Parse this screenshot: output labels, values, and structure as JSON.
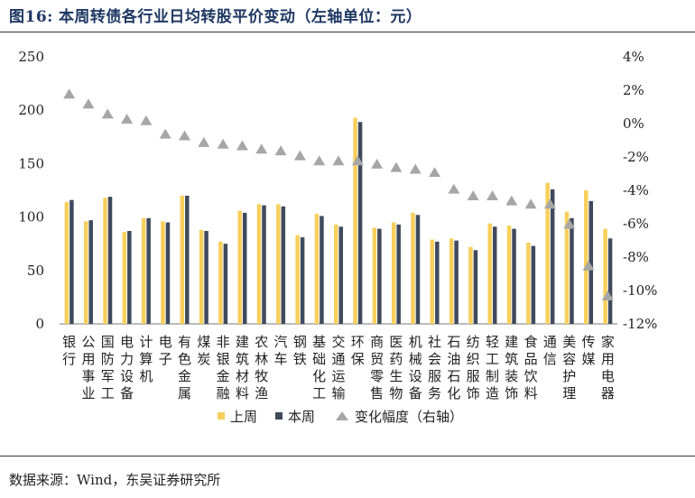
{
  "figure": {
    "number": "图16:",
    "title": "本周转债各行业日均转股平价变动（左轴单位：元）",
    "source": "数据来源：Wind，东吴证券研究所"
  },
  "colors": {
    "last_week": "#F7CF5B",
    "this_week": "#3F4A5C",
    "change": "#A6A6A6",
    "axis": "#555555"
  },
  "chart_data": {
    "type": "bar",
    "categories": [
      "银行",
      "公用事业",
      "国防军工",
      "电力设备",
      "计算机",
      "电子",
      "有色金属",
      "煤炭",
      "非银金融",
      "建筑材料",
      "农林牧渔",
      "汽车",
      "钢铁",
      "基础化工",
      "交通运输",
      "环保",
      "商贸零售",
      "医药生物",
      "机械设备",
      "社会服务",
      "石油石化",
      "纺织服饰",
      "轻工制造",
      "建筑装饰",
      "食品饮料",
      "通信",
      "美容护理",
      "传媒",
      "家用电器"
    ],
    "series": [
      {
        "name": "上周",
        "type": "bar",
        "axis": "left",
        "values": [
          114,
          96,
          118,
          86,
          99,
          96,
          120,
          88,
          77,
          106,
          112,
          112,
          83,
          103,
          93,
          193,
          90,
          95,
          104,
          79,
          80,
          72,
          94,
          92,
          76,
          132,
          105,
          125,
          89
        ]
      },
      {
        "name": "本周",
        "type": "bar",
        "axis": "left",
        "values": [
          116,
          97,
          119,
          87,
          99,
          95,
          120,
          87,
          75,
          104,
          111,
          110,
          81,
          101,
          91,
          189,
          89,
          93,
          102,
          77,
          78,
          69,
          91,
          89,
          73,
          126,
          99,
          115,
          80
        ]
      },
      {
        "name": "变化幅度（右轴）",
        "type": "scatter",
        "axis": "right",
        "values": [
          1.8,
          1.2,
          0.6,
          0.3,
          0.2,
          -0.6,
          -0.7,
          -1.1,
          -1.2,
          -1.3,
          -1.5,
          -1.6,
          -1.9,
          -2.2,
          -2.2,
          -2.2,
          -2.4,
          -2.6,
          -2.7,
          -2.9,
          -3.9,
          -4.3,
          -4.3,
          -4.6,
          -4.8,
          -4.8,
          -6.0,
          -8.5,
          -10.3
        ]
      }
    ],
    "y_left": {
      "lim": [
        0,
        250
      ],
      "ticks": [
        "0",
        "50",
        "100",
        "150",
        "200",
        "250"
      ],
      "tick_values": [
        0,
        50,
        100,
        150,
        200,
        250
      ]
    },
    "y_right": {
      "lim": [
        -12,
        4
      ],
      "ticks": [
        "-12%",
        "-10%",
        "-8%",
        "-6%",
        "-4%",
        "-2%",
        "0%",
        "2%",
        "4%"
      ],
      "tick_values": [
        -12,
        -10,
        -8,
        -6,
        -4,
        -2,
        0,
        2,
        4
      ]
    },
    "legend": {
      "position": "bottom",
      "items": [
        "上周",
        "本周",
        "变化幅度（右轴）"
      ]
    },
    "grid": false
  }
}
